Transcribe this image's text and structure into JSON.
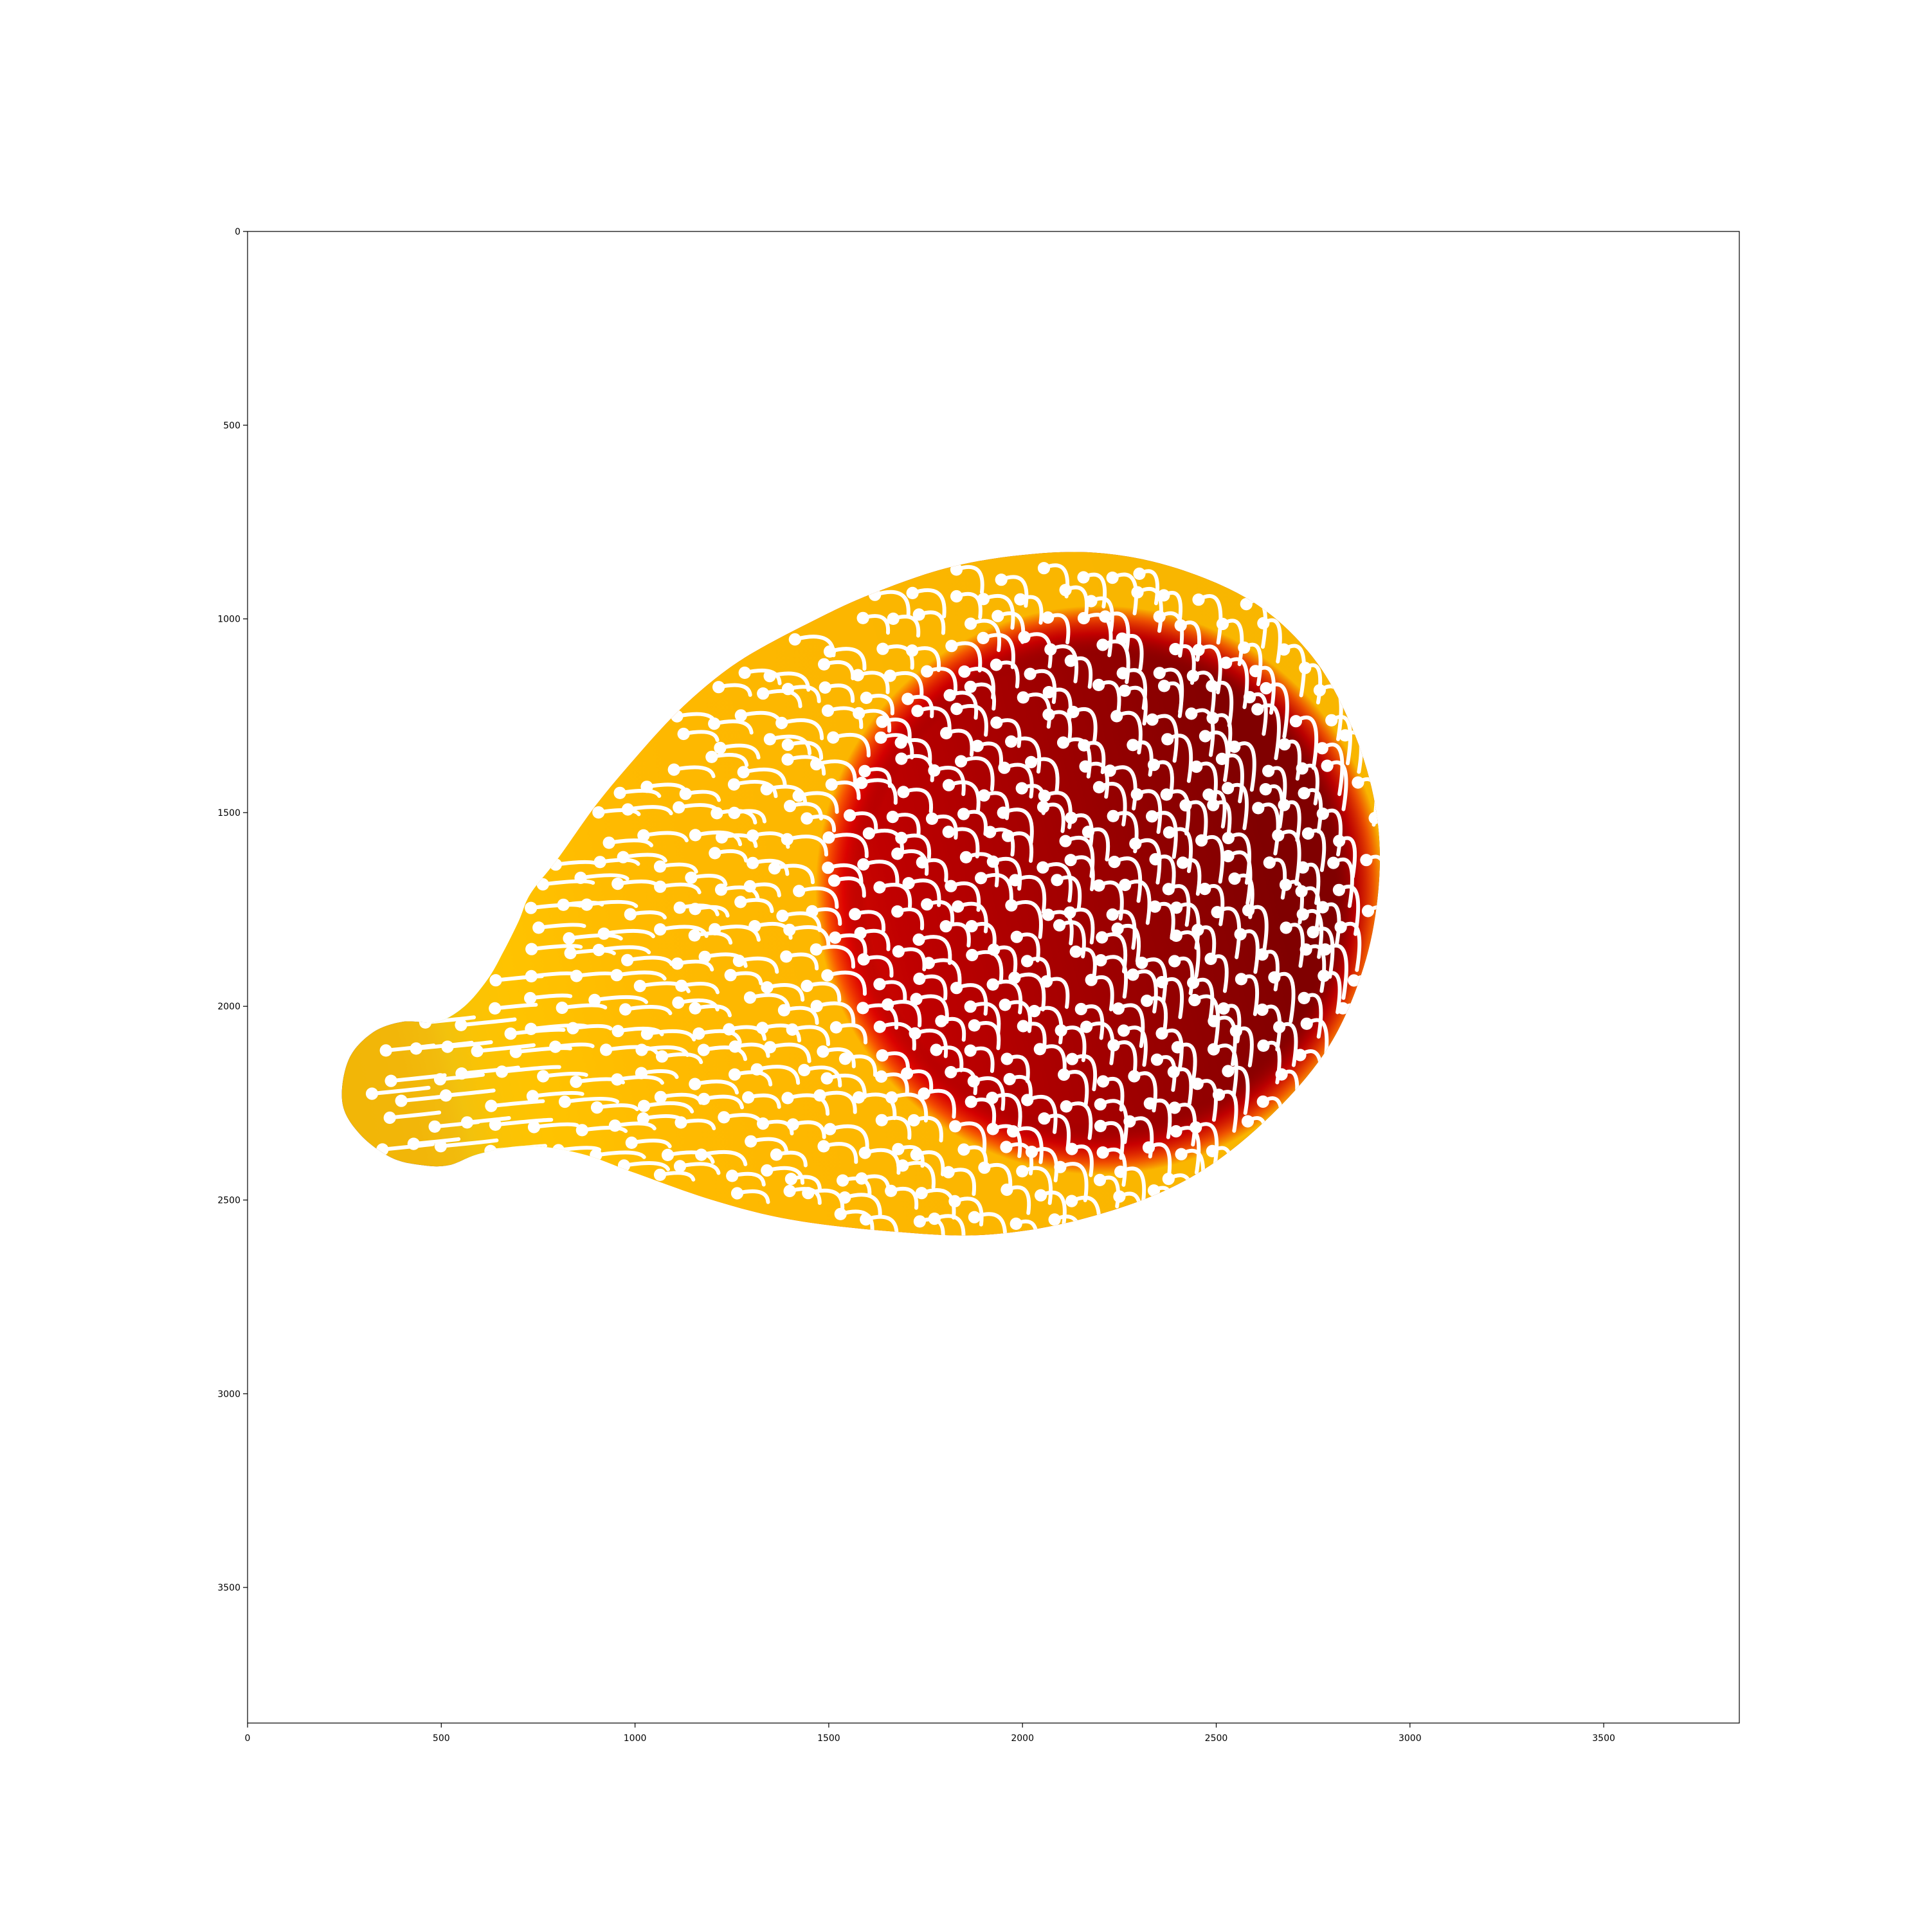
{
  "chart_data": {
    "type": "heatmap",
    "title": "",
    "xlabel": "",
    "ylabel": "",
    "xlim": [
      0,
      3850
    ],
    "ylim": [
      3850,
      0
    ],
    "x_ticks": [
      0,
      500,
      1000,
      1500,
      2000,
      2500,
      3000,
      3500
    ],
    "y_ticks": [
      0,
      500,
      1000,
      1500,
      2000,
      2500,
      3000,
      3500
    ],
    "x_tick_labels": [
      "0",
      "500",
      "1000",
      "1500",
      "2000",
      "2500",
      "3000",
      "3500"
    ],
    "y_tick_labels": [
      "0",
      "500",
      "1000",
      "1500",
      "2000",
      "2500",
      "3000",
      "3500"
    ],
    "colormap": "jet",
    "grid": false,
    "legend": "none",
    "background_color": "#ffffff",
    "trajectory_color": "#ffffff",
    "region": {
      "description_outline": [
        [
          490,
          2040
        ],
        [
          560,
          2000
        ],
        [
          620,
          1930
        ],
        [
          660,
          1860
        ],
        [
          700,
          1780
        ],
        [
          730,
          1710
        ],
        [
          800,
          1620
        ],
        [
          900,
          1480
        ],
        [
          1000,
          1360
        ],
        [
          1100,
          1250
        ],
        [
          1200,
          1160
        ],
        [
          1300,
          1090
        ],
        [
          1450,
          1010
        ],
        [
          1600,
          940
        ],
        [
          1800,
          870
        ],
        [
          2000,
          835
        ],
        [
          2200,
          830
        ],
        [
          2400,
          870
        ],
        [
          2600,
          960
        ],
        [
          2750,
          1100
        ],
        [
          2850,
          1280
        ],
        [
          2910,
          1480
        ],
        [
          2920,
          1680
        ],
        [
          2880,
          1900
        ],
        [
          2780,
          2120
        ],
        [
          2600,
          2320
        ],
        [
          2400,
          2460
        ],
        [
          2150,
          2550
        ],
        [
          1900,
          2590
        ],
        [
          1650,
          2580
        ],
        [
          1400,
          2550
        ],
        [
          1200,
          2500
        ],
        [
          1000,
          2430
        ],
        [
          860,
          2380
        ],
        [
          720,
          2360
        ],
        [
          600,
          2380
        ],
        [
          520,
          2410
        ],
        [
          450,
          2410
        ],
        [
          370,
          2390
        ],
        [
          290,
          2330
        ],
        [
          245,
          2250
        ],
        [
          260,
          2140
        ],
        [
          320,
          2070
        ],
        [
          400,
          2040
        ]
      ],
      "color_gradient_axis": {
        "from": [
          300,
          2230
        ],
        "to": [
          2650,
          1680
        ]
      },
      "color_stops": [
        {
          "offset": 0.0,
          "color": "#00008f"
        },
        {
          "offset": 0.05,
          "color": "#0000b8"
        },
        {
          "offset": 0.085,
          "color": "#0060ff"
        },
        {
          "offset": 0.1,
          "color": "#00e0ff"
        },
        {
          "offset": 0.13,
          "color": "#a0ff60"
        },
        {
          "offset": 0.18,
          "color": "#ffff00"
        },
        {
          "offset": 0.24,
          "color": "#ffb000"
        },
        {
          "offset": 0.3,
          "color": "#ff6000"
        },
        {
          "offset": 0.42,
          "color": "#f01a00"
        },
        {
          "offset": 0.6,
          "color": "#c00000"
        },
        {
          "offset": 0.85,
          "color": "#960000"
        },
        {
          "offset": 1.0,
          "color": "#800000"
        }
      ],
      "rim_colors": [
        "#ffc000",
        "#ff6000",
        "#e80000"
      ]
    },
    "trajectories": {
      "seed_points_x": [
        370,
        440,
        420,
        530,
        590,
        660,
        720,
        780,
        840,
        900,
        960,
        1020,
        1080,
        1140,
        1200,
        1260,
        1320,
        1380,
        1440,
        1500,
        1560,
        1620,
        1680,
        1740,
        1800,
        1860,
        1920,
        1980,
        2040,
        2100,
        2160,
        2220,
        2280,
        2340,
        2400,
        2460,
        2520,
        2580,
        2640,
        2700
      ],
      "note_marker_radius_data_units": 16
    }
  }
}
